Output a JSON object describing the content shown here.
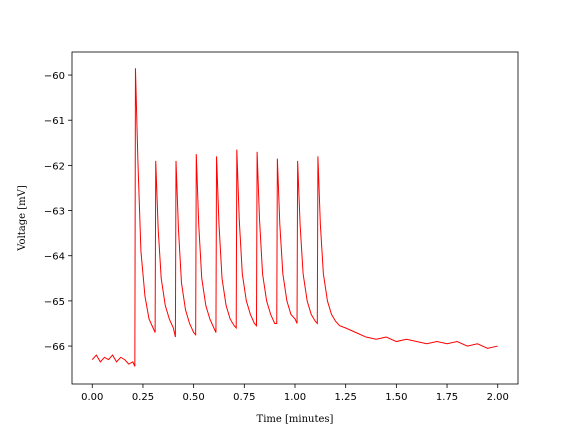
{
  "chart_data": {
    "type": "line",
    "xlabel": "Time [minutes]",
    "ylabel": "Voltage [mV]",
    "color": "#ff0000",
    "x": [
      0.0,
      0.02,
      0.04,
      0.06,
      0.08,
      0.1,
      0.12,
      0.14,
      0.16,
      0.18,
      0.2,
      0.21,
      0.213,
      0.225,
      0.24,
      0.26,
      0.28,
      0.3,
      0.31,
      0.313,
      0.325,
      0.34,
      0.36,
      0.38,
      0.4,
      0.41,
      0.413,
      0.425,
      0.44,
      0.46,
      0.48,
      0.5,
      0.51,
      0.513,
      0.525,
      0.54,
      0.56,
      0.58,
      0.6,
      0.61,
      0.613,
      0.625,
      0.64,
      0.66,
      0.68,
      0.7,
      0.71,
      0.713,
      0.725,
      0.74,
      0.76,
      0.78,
      0.8,
      0.81,
      0.813,
      0.825,
      0.84,
      0.86,
      0.88,
      0.9,
      0.91,
      0.913,
      0.925,
      0.94,
      0.96,
      0.98,
      1.0,
      1.01,
      1.013,
      1.025,
      1.04,
      1.06,
      1.08,
      1.1,
      1.11,
      1.113,
      1.125,
      1.14,
      1.16,
      1.18,
      1.2,
      1.22,
      1.25,
      1.3,
      1.35,
      1.4,
      1.45,
      1.5,
      1.55,
      1.6,
      1.65,
      1.7,
      1.75,
      1.8,
      1.85,
      1.9,
      1.95,
      2.0
    ],
    "values": [
      -66.3,
      -66.2,
      -66.35,
      -66.25,
      -66.3,
      -66.2,
      -66.35,
      -66.25,
      -66.3,
      -66.4,
      -66.35,
      -66.45,
      -59.85,
      -61.9,
      -63.9,
      -64.9,
      -65.4,
      -65.6,
      -65.7,
      -61.9,
      -63.4,
      -64.5,
      -65.1,
      -65.4,
      -65.6,
      -65.8,
      -61.9,
      -63.4,
      -64.6,
      -65.2,
      -65.5,
      -65.7,
      -65.75,
      -61.75,
      -63.3,
      -64.5,
      -65.1,
      -65.4,
      -65.6,
      -65.7,
      -61.8,
      -63.3,
      -64.5,
      -65.1,
      -65.4,
      -65.55,
      -65.6,
      -61.65,
      -63.2,
      -64.4,
      -65.0,
      -65.3,
      -65.5,
      -65.55,
      -61.7,
      -63.2,
      -64.4,
      -65.0,
      -65.3,
      -65.5,
      -65.5,
      -61.85,
      -63.3,
      -64.4,
      -65.0,
      -65.3,
      -65.4,
      -65.5,
      -61.9,
      -63.3,
      -64.4,
      -65.0,
      -65.3,
      -65.45,
      -65.5,
      -61.8,
      -63.3,
      -64.4,
      -65.0,
      -65.3,
      -65.45,
      -65.55,
      -65.6,
      -65.7,
      -65.8,
      -65.85,
      -65.8,
      -65.9,
      -65.85,
      -65.9,
      -65.95,
      -65.9,
      -65.95,
      -65.9,
      -66.0,
      -65.95,
      -66.05,
      -66.0
    ],
    "xlim": [
      -0.1,
      2.1
    ],
    "ylim": [
      -66.84,
      -59.49
    ],
    "xticks": [
      {
        "value": 0,
        "label": "0.00"
      },
      {
        "value": 0.25,
        "label": "0.25"
      },
      {
        "value": 0.5,
        "label": "0.50"
      },
      {
        "value": 0.75,
        "label": "0.75"
      },
      {
        "value": 1,
        "label": "1.00"
      },
      {
        "value": 1.25,
        "label": "1.25"
      },
      {
        "value": 1.5,
        "label": "1.50"
      },
      {
        "value": 1.75,
        "label": "1.75"
      },
      {
        "value": 2,
        "label": "2.00"
      }
    ],
    "yticks": [
      {
        "value": -66,
        "label": "−66"
      },
      {
        "value": -65,
        "label": "−65"
      },
      {
        "value": -64,
        "label": "−64"
      },
      {
        "value": -63,
        "label": "−63"
      },
      {
        "value": -62,
        "label": "−62"
      },
      {
        "value": -61,
        "label": "−61"
      },
      {
        "value": -60,
        "label": "−60"
      }
    ]
  }
}
